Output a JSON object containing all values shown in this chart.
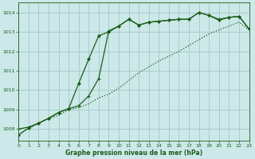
{
  "xlabel": "Graphe pression niveau de la mer (hPa)",
  "bg_color": "#cce8e8",
  "grid_color": "#aacccc",
  "line_color": "#1a5e1a",
  "xlim": [
    0,
    23
  ],
  "ylim": [
    1007.4,
    1014.5
  ],
  "yticks": [
    1008,
    1009,
    1010,
    1011,
    1012,
    1013,
    1014
  ],
  "xticks": [
    0,
    1,
    2,
    3,
    4,
    5,
    6,
    7,
    8,
    9,
    10,
    11,
    12,
    13,
    14,
    15,
    16,
    17,
    18,
    19,
    20,
    21,
    22,
    23
  ],
  "series": [
    {
      "x": [
        0,
        1,
        2,
        3,
        4,
        5,
        6,
        7,
        8,
        9,
        10,
        11,
        12,
        13,
        14,
        15,
        16,
        17,
        18,
        19,
        20,
        21,
        22,
        23
      ],
      "y": [
        1007.7,
        1008.05,
        1008.3,
        1008.55,
        1008.7,
        1009.0,
        1009.1,
        1009.3,
        1009.6,
        1009.8,
        1010.1,
        1010.5,
        1010.9,
        1011.2,
        1011.5,
        1011.75,
        1012.0,
        1012.3,
        1012.6,
        1012.9,
        1013.1,
        1013.3,
        1013.5,
        1013.1
      ],
      "marker": null,
      "linestyle": "dotted",
      "linewidth": 1.0
    },
    {
      "x": [
        0,
        1,
        2,
        3,
        4,
        5,
        6,
        7,
        8,
        9,
        10,
        11,
        12,
        13,
        14,
        15,
        16,
        17,
        18,
        19,
        20,
        21,
        22,
        23
      ],
      "y": [
        1008.0,
        1008.1,
        1008.3,
        1008.55,
        1008.85,
        1009.05,
        1009.2,
        1009.7,
        1010.6,
        1013.05,
        1013.3,
        1013.65,
        1013.35,
        1013.5,
        1013.55,
        1013.6,
        1013.65,
        1013.65,
        1014.0,
        1013.85,
        1013.65,
        1013.75,
        1013.8,
        1013.15
      ],
      "marker": "+",
      "linestyle": "-",
      "linewidth": 1.0
    },
    {
      "x": [
        0,
        1,
        2,
        3,
        4,
        5,
        6,
        7,
        8,
        9,
        10,
        11,
        12,
        13,
        14,
        15,
        16,
        17,
        18,
        19,
        20,
        21,
        22,
        23
      ],
      "y": [
        1007.7,
        1008.05,
        1008.3,
        1008.55,
        1008.85,
        1009.05,
        1010.35,
        1011.6,
        1012.8,
        1013.0,
        1013.3,
        1013.65,
        1013.35,
        1013.5,
        1013.55,
        1013.6,
        1013.65,
        1013.65,
        1014.0,
        1013.85,
        1013.6,
        1013.75,
        1013.8,
        1013.15
      ],
      "marker": "D",
      "markersize": 2.5,
      "linestyle": "-",
      "linewidth": 1.0
    }
  ]
}
